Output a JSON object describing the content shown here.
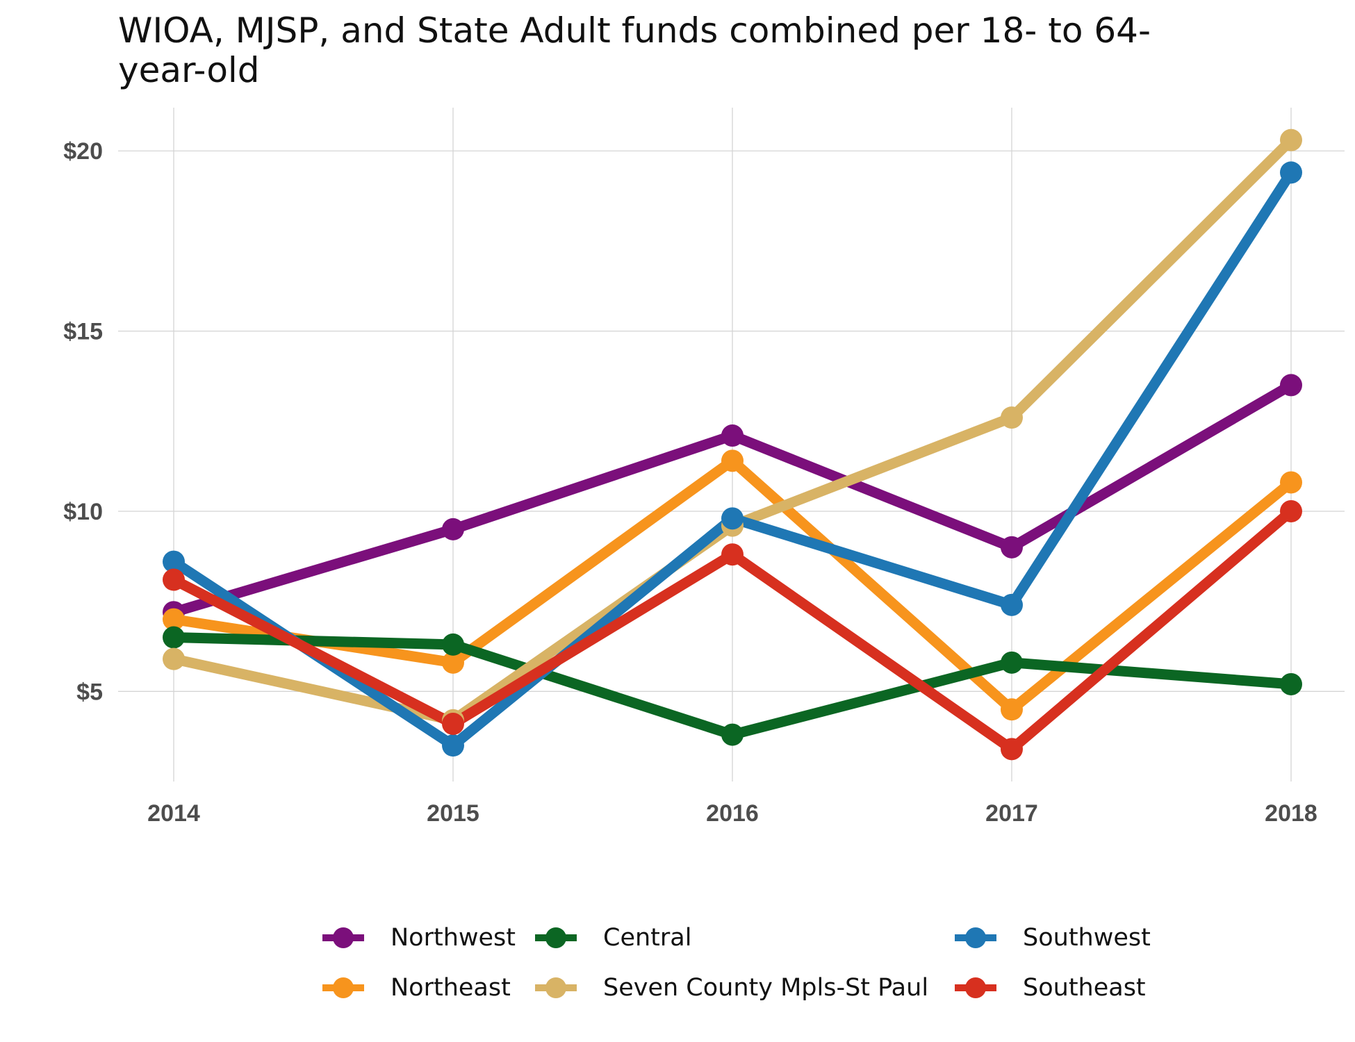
{
  "chart_data": {
    "type": "line",
    "title": "WIOA, MJSP, and State Adult funds combined per 18- to 64-year-old",
    "xlabel": "",
    "ylabel": "",
    "x": [
      "2014",
      "2015",
      "2016",
      "2017",
      "2018"
    ],
    "y_ticks": [
      "$5",
      "$10",
      "$15",
      "$20"
    ],
    "ylim": [
      2.5,
      21.2
    ],
    "grid": true,
    "legend_position": "bottom",
    "series": [
      {
        "name": "Northwest",
        "color": "#7B0F7B",
        "values": [
          7.2,
          9.5,
          12.1,
          9.0,
          13.5
        ]
      },
      {
        "name": "Northeast",
        "color": "#F7941D",
        "values": [
          7.0,
          5.8,
          11.4,
          4.5,
          10.8
        ]
      },
      {
        "name": "Central",
        "color": "#0B6623",
        "values": [
          6.5,
          6.3,
          3.8,
          5.8,
          5.2
        ]
      },
      {
        "name": "Seven County Mpls-St Paul",
        "color": "#D8B365",
        "values": [
          5.9,
          4.2,
          9.6,
          12.6,
          20.3
        ]
      },
      {
        "name": "Southwest",
        "color": "#1F77B4",
        "values": [
          8.6,
          3.5,
          9.8,
          7.4,
          19.4
        ]
      },
      {
        "name": "Southeast",
        "color": "#D7301F",
        "values": [
          8.1,
          4.1,
          8.8,
          3.4,
          10.0
        ]
      }
    ]
  }
}
